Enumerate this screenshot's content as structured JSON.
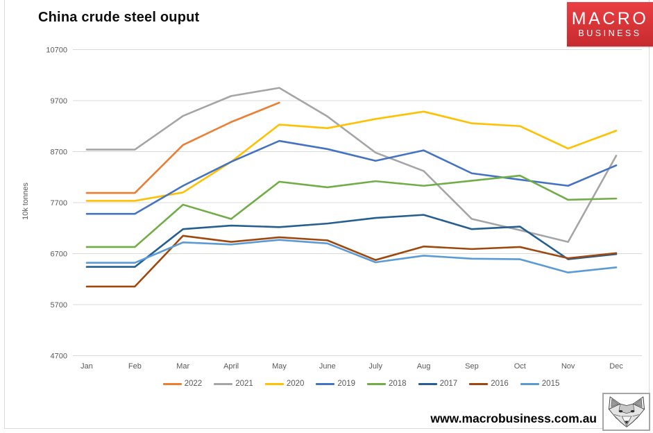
{
  "header": {
    "logo": {
      "line1": "MACRO",
      "line2": "BUSINESS",
      "bg_top": "#ea3e42",
      "bg_bottom": "#c72b2f",
      "text_color": "#ffffff"
    }
  },
  "footer": {
    "url": "www.macrobusiness.com.au",
    "fox_logo": "fox-sketch-icon"
  },
  "chart_data": {
    "type": "line",
    "title": "China crude steel ouput",
    "xlabel": "",
    "ylabel": "10k tonnes",
    "ylim": [
      4700,
      10700
    ],
    "yticks": [
      10700,
      9700,
      8700,
      7700,
      6700,
      5700,
      4700
    ],
    "grid": "horizontal",
    "gridline_color": "#d9d9d9",
    "legend_position": "bottom",
    "categories": [
      "Jan",
      "Feb",
      "Mar",
      "April",
      "May",
      "June",
      "July",
      "Aug",
      "Sep",
      "Oct",
      "Nov",
      "Dec"
    ],
    "series": [
      {
        "name": "2022",
        "color": "#ED7D31",
        "values": [
          7890,
          7890,
          8830,
          9280,
          9660,
          null,
          null,
          null,
          null,
          null,
          null,
          null
        ]
      },
      {
        "name": "2021",
        "color": "#A5A5A5",
        "values": [
          8740,
          8740,
          9400,
          9790,
          9950,
          9390,
          8680,
          8320,
          7380,
          7160,
          6930,
          8620
        ]
      },
      {
        "name": "2020",
        "color": "#FFC000",
        "values": [
          7735,
          7735,
          7900,
          8500,
          9230,
          9160,
          9340,
          9485,
          9255,
          9200,
          8760,
          9110
        ]
      },
      {
        "name": "2019",
        "color": "#4472C4",
        "values": [
          7480,
          7480,
          8030,
          8500,
          8910,
          8750,
          8520,
          8725,
          8275,
          8150,
          8030,
          8430
        ]
      },
      {
        "name": "2018",
        "color": "#70AD47",
        "values": [
          6830,
          6830,
          7660,
          7380,
          8110,
          8000,
          8120,
          8030,
          8130,
          8230,
          7755,
          7780
        ]
      },
      {
        "name": "2017",
        "color": "#255E91",
        "values": [
          6440,
          6440,
          7180,
          7250,
          7220,
          7290,
          7400,
          7460,
          7180,
          7230,
          6590,
          6690
        ]
      },
      {
        "name": "2016",
        "color": "#9E480E",
        "values": [
          6055,
          6055,
          7050,
          6930,
          7020,
          6960,
          6575,
          6840,
          6790,
          6830,
          6610,
          6710
        ]
      },
      {
        "name": "2015",
        "color": "#5B9BD5",
        "values": [
          6520,
          6520,
          6920,
          6880,
          6970,
          6900,
          6530,
          6660,
          6600,
          6590,
          6330,
          6430
        ]
      }
    ]
  }
}
